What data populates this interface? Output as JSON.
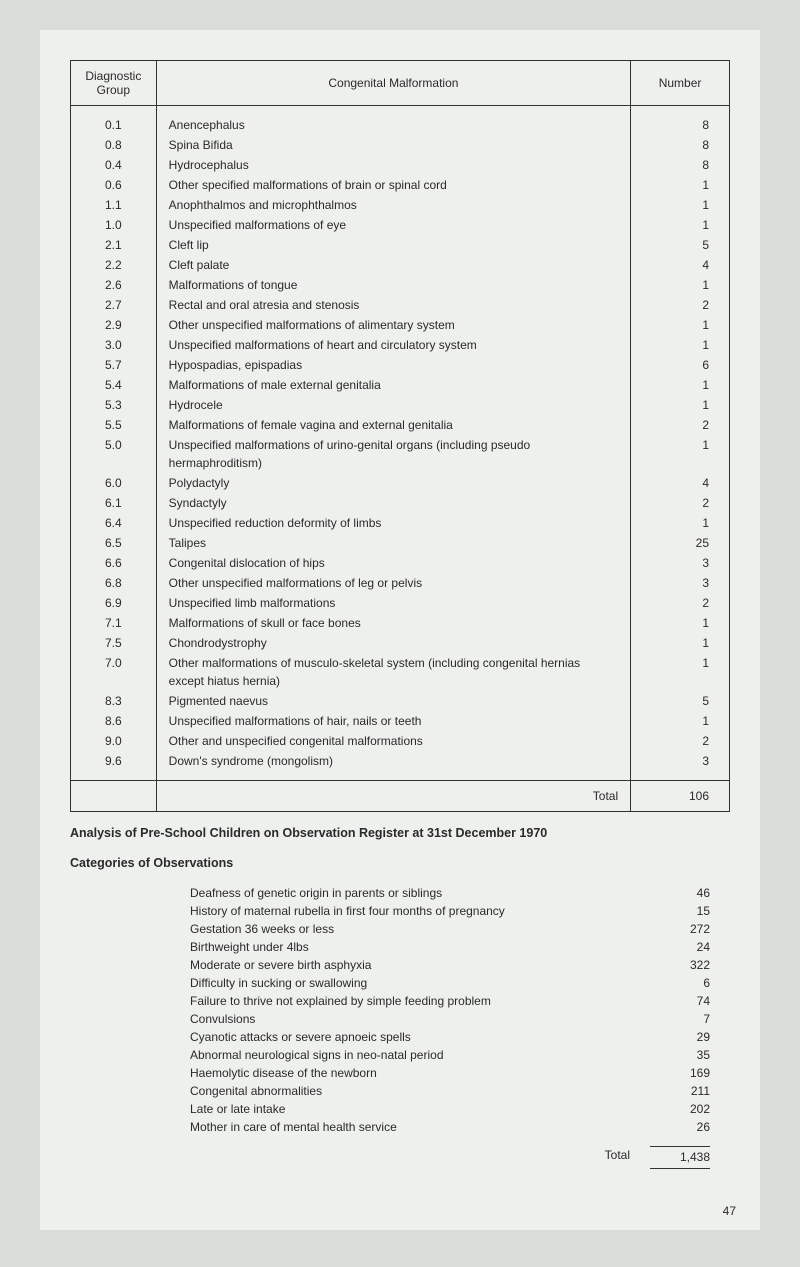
{
  "table": {
    "headers": {
      "group": "Diagnostic\nGroup",
      "malformation": "Congenital Malformation",
      "number": "Number"
    },
    "rows": [
      {
        "code": "0.1",
        "desc": "Anencephalus",
        "n": "8"
      },
      {
        "code": "0.8",
        "desc": "Spina Bifida",
        "n": "8"
      },
      {
        "code": "0.4",
        "desc": "Hydrocephalus",
        "n": "8"
      },
      {
        "code": "0.6",
        "desc": "Other specified malformations of brain or spinal cord",
        "n": "1"
      },
      {
        "code": "1.1",
        "desc": "Anophthalmos and microphthalmos",
        "n": "1"
      },
      {
        "code": "1.0",
        "desc": "Unspecified malformations of eye",
        "n": "1"
      },
      {
        "code": "2.1",
        "desc": "Cleft lip",
        "n": "5"
      },
      {
        "code": "2.2",
        "desc": "Cleft palate",
        "n": "4"
      },
      {
        "code": "2.6",
        "desc": "Malformations of tongue",
        "n": "1"
      },
      {
        "code": "2.7",
        "desc": "Rectal and oral atresia and stenosis",
        "n": "2"
      },
      {
        "code": "2.9",
        "desc": "Other unspecified malformations of alimentary system",
        "n": "1"
      },
      {
        "code": "3.0",
        "desc": "Unspecified malformations of heart and circulatory system",
        "n": "1"
      },
      {
        "code": "5.7",
        "desc": "Hypospadias, epispadias",
        "n": "6"
      },
      {
        "code": "5.4",
        "desc": "Malformations of male external genitalia",
        "n": "1"
      },
      {
        "code": "5.3",
        "desc": "Hydrocele",
        "n": "1"
      },
      {
        "code": "5.5",
        "desc": "Malformations of female vagina and external genitalia",
        "n": "2"
      },
      {
        "code": "5.0",
        "desc": "Unspecified malformations of urino-genital organs (including pseudo hermaphroditism)",
        "n": "1"
      },
      {
        "code": "6.0",
        "desc": "Polydactyly",
        "n": "4"
      },
      {
        "code": "6.1",
        "desc": "Syndactyly",
        "n": "2"
      },
      {
        "code": "6.4",
        "desc": "Unspecified reduction deformity of limbs",
        "n": "1"
      },
      {
        "code": "6.5",
        "desc": "Talipes",
        "n": "25"
      },
      {
        "code": "6.6",
        "desc": "Congenital dislocation of hips",
        "n": "3"
      },
      {
        "code": "6.8",
        "desc": "Other unspecified malformations of leg or pelvis",
        "n": "3"
      },
      {
        "code": "6.9",
        "desc": "Unspecified limb malformations",
        "n": "2"
      },
      {
        "code": "7.1",
        "desc": "Malformations of skull or face bones",
        "n": "1"
      },
      {
        "code": "7.5",
        "desc": "Chondrodystrophy",
        "n": "1"
      },
      {
        "code": "7.0",
        "desc": "Other malformations of musculo-skeletal system (including congenital hernias except hiatus hernia)",
        "n": "1"
      },
      {
        "code": "8.3",
        "desc": "Pigmented naevus",
        "n": "5"
      },
      {
        "code": "8.6",
        "desc": "Unspecified malformations of hair, nails or teeth",
        "n": "1"
      },
      {
        "code": "9.0",
        "desc": "Other and unspecified congenital malformations",
        "n": "2"
      },
      {
        "code": "9.6",
        "desc": "Down's syndrome (mongolism)",
        "n": "3"
      }
    ],
    "total_label": "Total",
    "total_value": "106"
  },
  "analysis_title": "Analysis of Pre-School Children on Observation Register at 31st December 1970",
  "categories_title": "Categories of Observations",
  "observations": [
    {
      "label": "Deafness of genetic origin in parents or siblings",
      "value": "46"
    },
    {
      "label": "History of maternal rubella in first four months of pregnancy",
      "value": "15"
    },
    {
      "label": "Gestation 36 weeks or less",
      "value": "272"
    },
    {
      "label": "Birthweight under 4lbs",
      "value": "24"
    },
    {
      "label": "Moderate or severe birth asphyxia",
      "value": "322"
    },
    {
      "label": "Difficulty in sucking or swallowing",
      "value": "6"
    },
    {
      "label": "Failure to thrive not explained by simple feeding problem",
      "value": "74"
    },
    {
      "label": "Convulsions",
      "value": "7"
    },
    {
      "label": "Cyanotic attacks or severe apnoeic spells",
      "value": "29"
    },
    {
      "label": "Abnormal neurological signs in neo-natal period",
      "value": "35"
    },
    {
      "label": "Haemolytic disease of the newborn",
      "value": "169"
    },
    {
      "label": "Congenital abnormalities",
      "value": "211"
    },
    {
      "label": "Late or late intake",
      "value": "202"
    },
    {
      "label": "Mother in care of mental health service",
      "value": "26"
    }
  ],
  "obs_total_label": "Total",
  "obs_total_value": "1,438",
  "page_number": "47"
}
